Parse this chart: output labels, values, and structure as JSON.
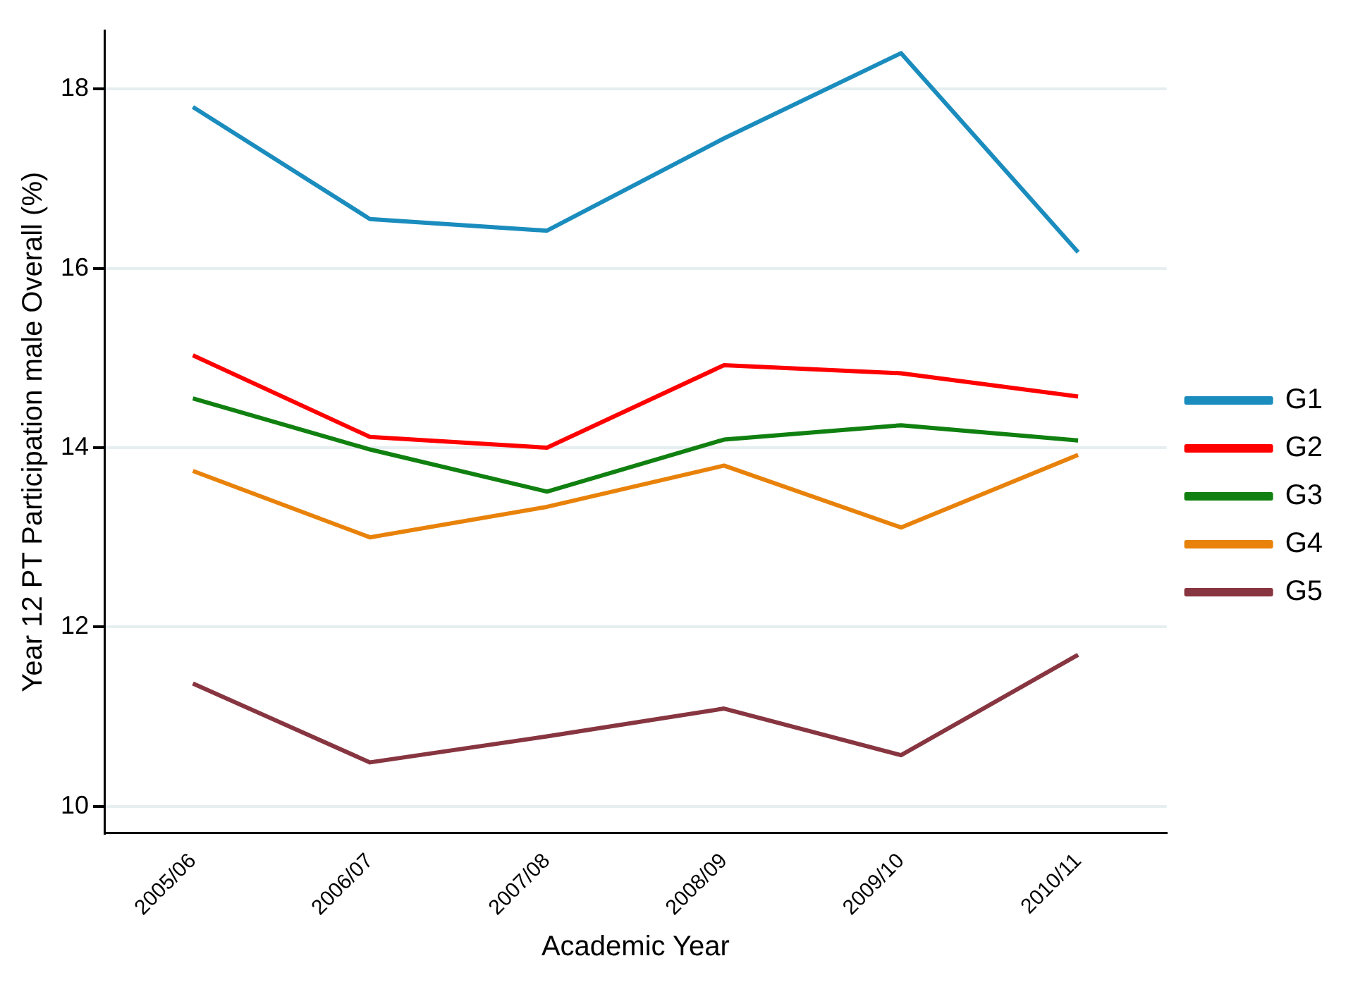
{
  "chart_data": {
    "type": "line",
    "xlabel": "Academic Year",
    "ylabel": "Year 12 PT Participation male Overall (%)",
    "categories": [
      "2005/06",
      "2006/07",
      "2007/08",
      "2008/09",
      "2009/10",
      "2010/11"
    ],
    "series": [
      {
        "name": "G1",
        "color": "#1a8cbd",
        "values": [
          17.8,
          16.55,
          16.42,
          17.45,
          18.4,
          16.18
        ]
      },
      {
        "name": "G2",
        "color": "#ff0000",
        "values": [
          15.03,
          14.12,
          14.0,
          14.92,
          14.83,
          14.57
        ]
      },
      {
        "name": "G3",
        "color": "#108010",
        "values": [
          14.55,
          13.98,
          13.51,
          14.09,
          14.25,
          14.08
        ]
      },
      {
        "name": "G4",
        "color": "#e8820a",
        "values": [
          13.74,
          13.0,
          13.34,
          13.8,
          13.11,
          13.92
        ]
      },
      {
        "name": "G5",
        "color": "#873540",
        "values": [
          11.37,
          10.49,
          10.78,
          11.09,
          10.57,
          11.69
        ]
      }
    ],
    "ylim": [
      9.7,
      18.65
    ],
    "yticks": [
      10,
      12,
      14,
      16,
      18
    ],
    "grid": "y",
    "legend": "right",
    "marker": "none",
    "line_style": "solid"
  }
}
